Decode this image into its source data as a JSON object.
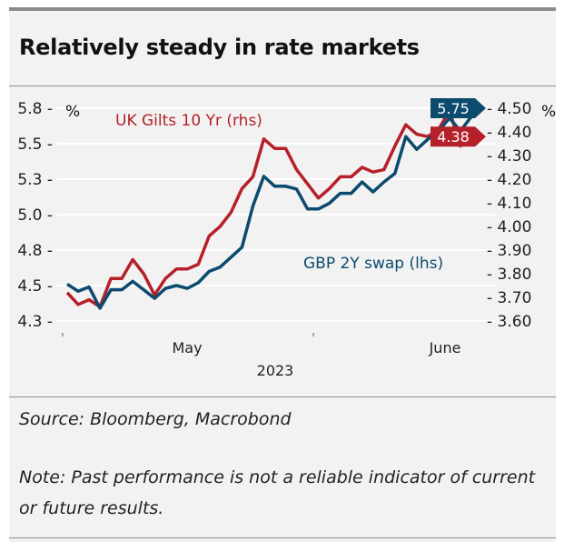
{
  "title": "Relatively steady in rate markets",
  "source": "Source: Bloomberg, Macrobond",
  "note": "Note: Past performance is not a reliable indicator of current or future results.",
  "chart_data": {
    "type": "line",
    "title": "Relatively steady in rate markets",
    "x_tick_labels": [
      "May",
      "June"
    ],
    "x_year_label": "2023",
    "left_axis": {
      "unit": "%",
      "range": [
        4.25,
        5.75
      ],
      "ticks": [
        5.75,
        5.5,
        5.25,
        5.0,
        4.75,
        4.5,
        4.25
      ],
      "tick_labels": [
        "5.8",
        "5.5",
        "5.3",
        "5.0",
        "4.8",
        "4.5",
        "4.3"
      ]
    },
    "right_axis": {
      "unit": "%",
      "range": [
        3.6,
        4.5
      ],
      "ticks": [
        4.5,
        4.4,
        4.3,
        4.2,
        4.1,
        4.0,
        3.9,
        3.8,
        3.7,
        3.6
      ],
      "tick_labels": [
        "4.50",
        "4.40",
        "4.30",
        "4.20",
        "4.10",
        "4.00",
        "3.90",
        "3.80",
        "3.70",
        "3.60"
      ]
    },
    "grid": true,
    "series": [
      {
        "name": "UK Gilts 10 Yr (rhs)",
        "axis": "right",
        "color": "#b5202a",
        "last_value_label": "4.38",
        "values": [
          3.72,
          3.67,
          3.69,
          3.66,
          3.78,
          3.78,
          3.86,
          3.8,
          3.71,
          3.78,
          3.82,
          3.82,
          3.84,
          3.96,
          4.0,
          4.06,
          4.16,
          4.21,
          4.37,
          4.33,
          4.33,
          4.24,
          4.18,
          4.12,
          4.16,
          4.21,
          4.21,
          4.25,
          4.23,
          4.24,
          4.34,
          4.43,
          4.39,
          4.38,
          4.41,
          4.49,
          4.34,
          4.4,
          4.38
        ]
      },
      {
        "name": "GBP 2Y swap (lhs)",
        "axis": "left",
        "color": "#0c4a6e",
        "last_value_label": "5.75",
        "values": [
          4.51,
          4.46,
          4.49,
          4.34,
          4.47,
          4.47,
          4.53,
          4.47,
          4.41,
          4.48,
          4.5,
          4.48,
          4.52,
          4.6,
          4.63,
          4.7,
          4.77,
          5.06,
          5.27,
          5.2,
          5.2,
          5.18,
          5.04,
          5.04,
          5.08,
          5.15,
          5.15,
          5.23,
          5.16,
          5.23,
          5.29,
          5.55,
          5.46,
          5.53,
          5.59,
          5.68,
          5.59,
          5.69,
          5.75
        ]
      }
    ]
  }
}
